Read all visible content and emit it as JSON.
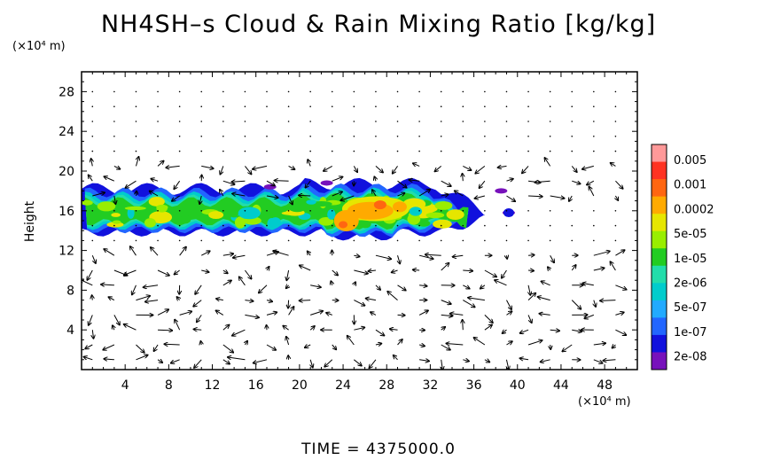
{
  "chart_data": {
    "type": "heatmap",
    "title": "NH4SH–s Cloud & Rain Mixing Ratio [kg/kg]",
    "ylabel": "Height",
    "yunit": "(×10⁴ m)",
    "xunit": "(×10⁴ m)",
    "xlim": [
      0,
      51
    ],
    "ylim": [
      0,
      30
    ],
    "xticks": [
      "4",
      "8",
      "12",
      "16",
      "20",
      "24",
      "28",
      "32",
      "36",
      "40",
      "44",
      "48"
    ],
    "yticks": [
      "4",
      "8",
      "12",
      "16",
      "20",
      "24",
      "28"
    ],
    "colorbar": {
      "labels": [
        "0.005",
        "0.001",
        "0.0002",
        "5e-05",
        "1e-05",
        "2e-06",
        "5e-07",
        "1e-07",
        "2e-08"
      ],
      "colors": [
        "#ff9999",
        "#ff3322",
        "#ff6611",
        "#ffaa00",
        "#e6e600",
        "#99ee00",
        "#22cc22",
        "#22ddaa",
        "#00cccc",
        "#22aaff",
        "#2266ff",
        "#1111dd",
        "#7711bb"
      ]
    },
    "layer": {
      "bottom_km": 140,
      "top_km": 185,
      "x_start": 0,
      "x_end": 39
    },
    "footer": "TIME  =  4375000.0"
  }
}
